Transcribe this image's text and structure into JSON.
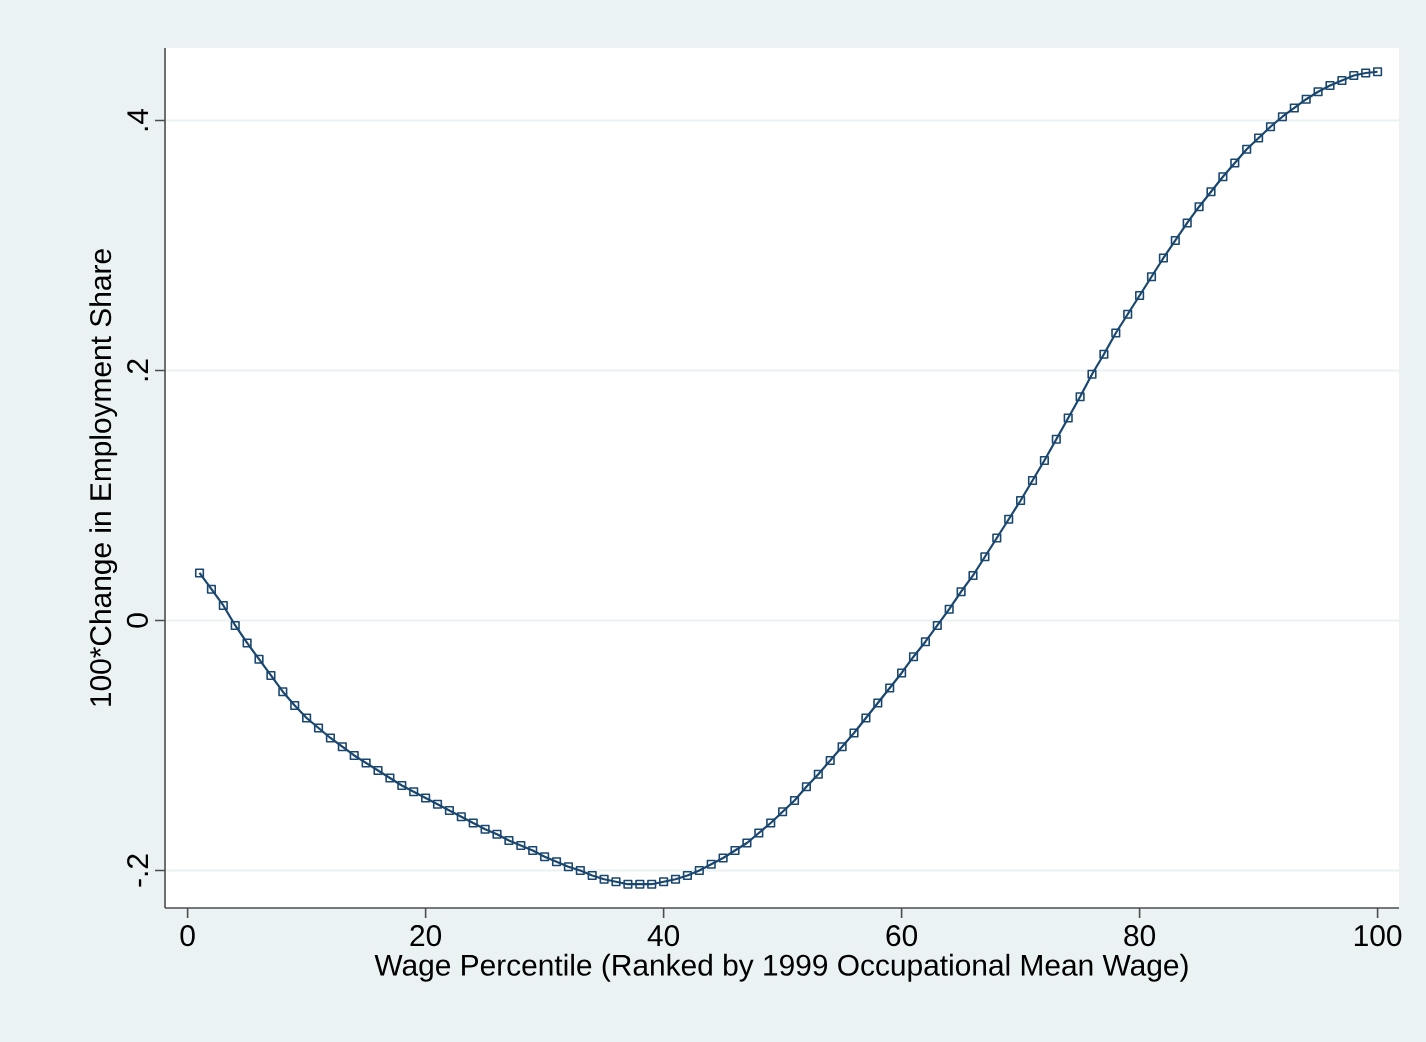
{
  "chart_data": {
    "type": "line",
    "xlabel": "Wage Percentile (Ranked by 1999 Occupational Mean Wage)",
    "ylabel": "100*Change in Employment Share",
    "x": [
      1,
      2,
      3,
      4,
      5,
      6,
      7,
      8,
      9,
      10,
      11,
      12,
      13,
      14,
      15,
      16,
      17,
      18,
      19,
      20,
      21,
      22,
      23,
      24,
      25,
      26,
      27,
      28,
      29,
      30,
      31,
      32,
      33,
      34,
      35,
      36,
      37,
      38,
      39,
      40,
      41,
      42,
      43,
      44,
      45,
      46,
      47,
      48,
      49,
      50,
      51,
      52,
      53,
      54,
      55,
      56,
      57,
      58,
      59,
      60,
      61,
      62,
      63,
      64,
      65,
      66,
      67,
      68,
      69,
      70,
      71,
      72,
      73,
      74,
      75,
      76,
      77,
      78,
      79,
      80,
      81,
      82,
      83,
      84,
      85,
      86,
      87,
      88,
      89,
      90,
      91,
      92,
      93,
      94,
      95,
      96,
      97,
      98,
      99,
      100
    ],
    "series": [
      {
        "color": "#1a476f",
        "values": [
          0.038,
          0.025,
          0.012,
          -0.004,
          -0.018,
          -0.031,
          -0.044,
          -0.057,
          -0.068,
          -0.078,
          -0.086,
          -0.094,
          -0.101,
          -0.108,
          -0.114,
          -0.12,
          -0.126,
          -0.132,
          -0.137,
          -0.142,
          -0.147,
          -0.152,
          -0.157,
          -0.162,
          -0.167,
          -0.171,
          -0.176,
          -0.18,
          -0.184,
          -0.189,
          -0.193,
          -0.197,
          -0.2,
          -0.204,
          -0.207,
          -0.209,
          -0.211,
          -0.211,
          -0.211,
          -0.209,
          -0.207,
          -0.204,
          -0.2,
          -0.195,
          -0.19,
          -0.184,
          -0.178,
          -0.17,
          -0.162,
          -0.153,
          -0.144,
          -0.133,
          -0.123,
          -0.112,
          -0.101,
          -0.09,
          -0.078,
          -0.066,
          -0.054,
          -0.042,
          -0.029,
          -0.017,
          -0.004,
          0.009,
          0.023,
          0.036,
          0.051,
          0.066,
          0.081,
          0.096,
          0.112,
          0.128,
          0.145,
          0.162,
          0.179,
          0.197,
          0.213,
          0.23,
          0.245,
          0.26,
          0.275,
          0.29,
          0.304,
          0.318,
          0.331,
          0.343,
          0.355,
          0.366,
          0.377,
          0.386,
          0.395,
          0.403,
          0.41,
          0.417,
          0.423,
          0.428,
          0.432,
          0.436,
          0.438,
          0.439
        ]
      }
    ],
    "xlim": [
      -1.9,
      101.8
    ],
    "ylim": [
      -0.23,
      0.458
    ],
    "xticks": [
      0,
      20,
      40,
      60,
      80,
      100
    ],
    "yticks": [
      {
        "value": -0.2,
        "label": "-.2"
      },
      {
        "value": 0,
        "label": "0"
      },
      {
        "value": 0.2,
        "label": ".2"
      },
      {
        "value": 0.4,
        "label": ".4"
      }
    ],
    "grid": "y",
    "marker": "square",
    "line_style": "solid"
  }
}
